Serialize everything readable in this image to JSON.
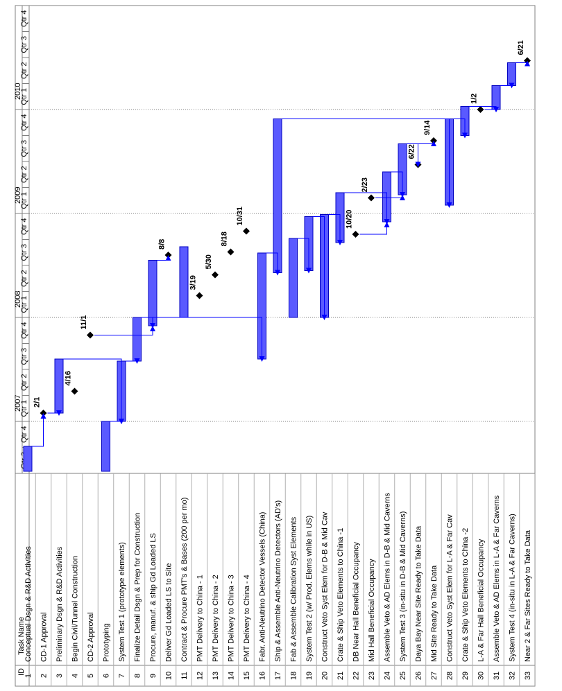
{
  "header": {
    "id_label": "ID",
    "task_name_label": "Task Name"
  },
  "timescale": {
    "years": [
      {
        "label": "2007",
        "quarters": [
          "Qtr 1",
          "Qtr 2",
          "Qtr 3",
          "Qtr 4"
        ]
      },
      {
        "label": "2008",
        "quarters": [
          "Qtr 1",
          "Qtr 2",
          "Qtr 3",
          "Qtr 4"
        ]
      },
      {
        "label": "2009",
        "quarters": [
          "Qtr 1",
          "Qtr 2",
          "Qtr 3",
          "Qtr 4"
        ]
      },
      {
        "label": "2010",
        "quarters": [
          "Qtr 1",
          "Qtr 2",
          "Qtr 3",
          "Qtr 4"
        ]
      }
    ],
    "leading_quarters": [
      "Qtr 3",
      "Qtr 4"
    ]
  },
  "colors": {
    "bar_fill": "#5a5aff",
    "bar_border": "#0000c0",
    "link_blue": "#0000ff",
    "link_black": "#000000",
    "milestone": "#000000",
    "text_red": "#c00000",
    "text_green": "#008000"
  },
  "chart_data": {
    "type": "gantt",
    "time_axis": {
      "start": 2006.5,
      "end": 2011.0,
      "unit": "year"
    },
    "tasks": [
      {
        "id": 1,
        "name": "Conceptual Dsgn & R&D Activities",
        "color": "black",
        "start": 2006.52,
        "end": 2006.76
      },
      {
        "id": 2,
        "name": "CD-1 Approval",
        "color": "black",
        "milestone": "2/1",
        "date": 2007.08
      },
      {
        "id": 3,
        "name": "Preliminary Dsgn & R&D Activities",
        "color": "black",
        "start": 2007.08,
        "end": 2007.6
      },
      {
        "id": 4,
        "name": "Begin Civil/Tunnel Construction",
        "color": "red",
        "milestone": "4/16",
        "date": 2007.29
      },
      {
        "id": 5,
        "name": "CD-2 Approval",
        "color": "black",
        "milestone": "11/1",
        "date": 2007.83
      },
      {
        "id": 6,
        "name": "Prototyping",
        "color": "black",
        "start": 2006.52,
        "end": 2007.0
      },
      {
        "id": 7,
        "name": "System Test 1 (prototype elements)",
        "color": "black",
        "start": 2007.0,
        "end": 2007.58
      },
      {
        "id": 8,
        "name": "Finalize Detail Dsgn & Prep for Construction",
        "color": "black",
        "start": 2007.58,
        "end": 2008.0
      },
      {
        "id": 9,
        "name": "Procure, manuf. & ship Gd Loaded LS",
        "color": "black",
        "start": 2007.92,
        "end": 2008.55
      },
      {
        "id": 10,
        "name": "Deliver Gd Loaded LS to Site",
        "color": "black",
        "milestone": "8/8",
        "date": 2008.6
      },
      {
        "id": 11,
        "name": "Contract & Procure PMT's & Bases (200 per mo)",
        "color": "black",
        "start": 2008.0,
        "end": 2008.68
      },
      {
        "id": 12,
        "name": "PMT Delivery to China - 1",
        "color": "black",
        "milestone": "3/19",
        "date": 2008.21
      },
      {
        "id": 13,
        "name": "PMT Delivery to China - 2",
        "color": "black",
        "milestone": "5/30",
        "date": 2008.41
      },
      {
        "id": 14,
        "name": "PMT Delivery to China - 3",
        "color": "black",
        "milestone": "8/18",
        "date": 2008.63
      },
      {
        "id": 15,
        "name": "PMT Delivery to China - 4",
        "color": "black",
        "milestone": "10/31",
        "date": 2008.83
      },
      {
        "id": 16,
        "name": "Fabr. Anti-Neutrino Detector Vessels (China)",
        "color": "black",
        "start": 2007.6,
        "end": 2008.62
      },
      {
        "id": 17,
        "name": "Ship & Assemble Anti-Neutrino Detectors (AD's)",
        "color": "black",
        "start": 2008.43,
        "end": 2009.91
      },
      {
        "id": 18,
        "name": "Fab & Assemble Calibration Syst Elements",
        "color": "black",
        "start": 2008.0,
        "end": 2008.76
      },
      {
        "id": 19,
        "name": "System Test 2 (w/ Prod. Elems while in US)",
        "color": "black",
        "start": 2008.45,
        "end": 2008.97
      },
      {
        "id": 20,
        "name": "Construct Veto Syst Elem for D-B & Mid Cav",
        "color": "black",
        "start": 2008.0,
        "end": 2008.99
      },
      {
        "id": 21,
        "name": "Crate & Ship Veto Elements to China -1",
        "color": "black",
        "start": 2008.72,
        "end": 2009.2
      },
      {
        "id": 22,
        "name": "DB Near Hall Beneficial Occupancy",
        "color": "red",
        "milestone": "10/20",
        "date": 2008.8
      },
      {
        "id": 23,
        "name": "Mid Hall Beneficial Occupancy",
        "color": "red",
        "milestone": "2/23",
        "date": 2009.15
      },
      {
        "id": 24,
        "name": "Assemble Veto & AD Elems in D-B & Mid Caverns",
        "color": "black",
        "start": 2008.92,
        "end": 2009.4
      },
      {
        "id": 25,
        "name": "System Test 3 (in-situ in D-B & Mid Caverns)",
        "color": "black",
        "start": 2009.18,
        "end": 2009.67
      },
      {
        "id": 26,
        "name": "Daya Bay Near Site Ready to Take Data",
        "color": "green",
        "milestone": "6/22",
        "date": 2009.47
      },
      {
        "id": 27,
        "name": "Mid Site Ready to Take Data",
        "color": "green",
        "milestone": "9/14",
        "date": 2009.7
      },
      {
        "id": 28,
        "name": "Construct Veto Syst Elem for L-A & Far Cav",
        "color": "black",
        "start": 2009.08,
        "end": 2009.91
      },
      {
        "id": 29,
        "name": "Crate & Ship Veto Elements to China -2",
        "color": "black",
        "start": 2009.75,
        "end": 2010.03
      },
      {
        "id": 30,
        "name": "L-A & Far Hall Beneficial Occupancy",
        "color": "red",
        "milestone": "1/2",
        "date": 2010.0
      },
      {
        "id": 31,
        "name": "Assemble Veto & AD Elems in L-A & Far Caverns",
        "color": "black",
        "start": 2010.0,
        "end": 2010.23
      },
      {
        "id": 32,
        "name": "System Test 4 (in-situ in L-A & Far Caverns)",
        "color": "black",
        "start": 2010.23,
        "end": 2010.45
      },
      {
        "id": 33,
        "name": "Near 2 & Far Sites Ready to Take Data",
        "color": "green",
        "milestone": "6/21",
        "date": 2010.47
      }
    ]
  }
}
